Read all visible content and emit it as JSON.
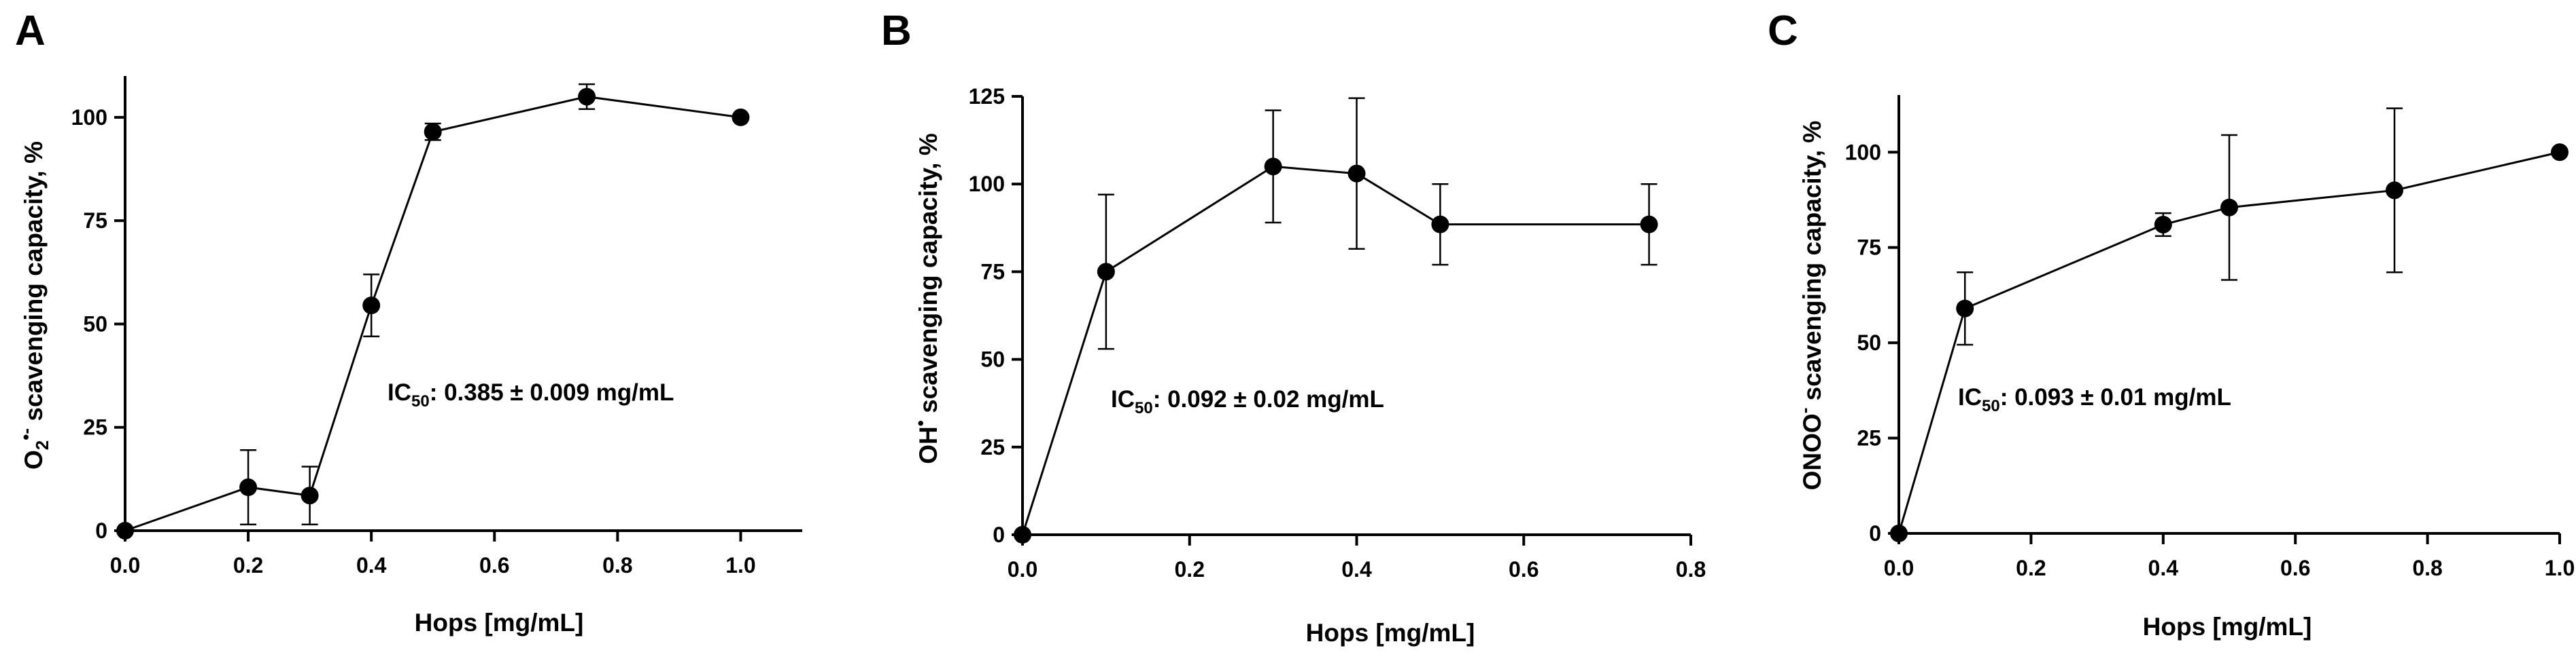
{
  "chart_data": [
    {
      "type": "line",
      "panel": "A",
      "xlabel": "Hops [mg/mL]",
      "ylabel": "scavenging capacity, %",
      "ylabel_species": "O",
      "ylabel_sub": "2",
      "ylabel_sup": "•-",
      "annotation_prefix": "IC",
      "annotation_sub": "50",
      "annotation_value": ": 0.385 ± 0.009 mg/mL",
      "xlim": [
        0,
        1.1
      ],
      "ylim": [
        0,
        110
      ],
      "xticks": [
        "0.0",
        "0.2",
        "0.4",
        "0.6",
        "0.8",
        "1.0"
      ],
      "yticks": [
        "0",
        "25",
        "50",
        "75",
        "100"
      ],
      "x": [
        0,
        0.2,
        0.3,
        0.4,
        0.5,
        0.75,
        1.0
      ],
      "y": [
        0,
        10.5,
        8.5,
        54.5,
        96.5,
        105,
        100
      ],
      "err": [
        0,
        9,
        7,
        7.5,
        2,
        3,
        0
      ]
    },
    {
      "type": "line",
      "panel": "B",
      "xlabel": "Hops [mg/mL]",
      "ylabel": "scavenging capacity, %",
      "ylabel_species": "OH",
      "ylabel_sub": "",
      "ylabel_sup": "•",
      "annotation_prefix": "IC",
      "annotation_sub": "50",
      "annotation_value": ": 0.092 ± 0.02 mg/mL",
      "xlim": [
        0,
        0.8
      ],
      "ylim": [
        0,
        125
      ],
      "xticks": [
        "0.0",
        "0.2",
        "0.4",
        "0.6",
        "0.8"
      ],
      "yticks": [
        "0",
        "25",
        "50",
        "75",
        "100",
        "125"
      ],
      "x": [
        0,
        0.1,
        0.3,
        0.4,
        0.5,
        0.75
      ],
      "y": [
        0,
        75,
        105,
        103,
        88.5,
        88.5
      ],
      "err": [
        0,
        22,
        16,
        21.5,
        11.5,
        11.5
      ]
    },
    {
      "type": "line",
      "panel": "C",
      "xlabel": "Hops [mg/mL]",
      "ylabel": "scavenging capacity, %",
      "ylabel_species": "ONOO",
      "ylabel_sub": "",
      "ylabel_sup": "-",
      "annotation_prefix": "IC",
      "annotation_sub": "50",
      "annotation_value": ": 0.093 ± 0.01 mg/mL",
      "xlim": [
        0,
        1.0
      ],
      "ylim": [
        0,
        115
      ],
      "xticks": [
        "0.0",
        "0.2",
        "0.4",
        "0.6",
        "0.8",
        "1.0"
      ],
      "yticks": [
        "0",
        "25",
        "50",
        "75",
        "100"
      ],
      "x": [
        0,
        0.1,
        0.4,
        0.5,
        0.75,
        1.0
      ],
      "y": [
        0,
        59,
        81,
        85.5,
        90,
        100
      ],
      "err": [
        0,
        9.5,
        3,
        19,
        21.5,
        0
      ]
    }
  ]
}
